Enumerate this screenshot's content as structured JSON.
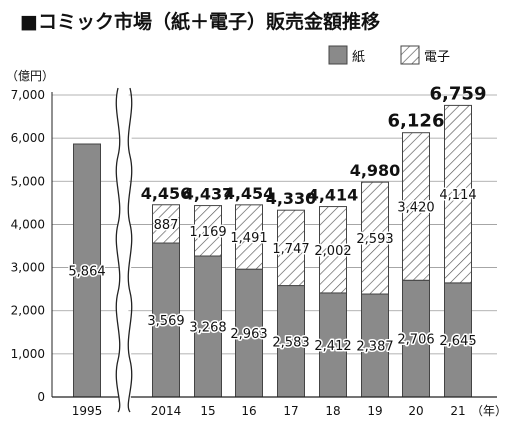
{
  "chart_data": {
    "type": "bar",
    "title": "■コミック市場（紙＋電子）販売金額推移",
    "ylabel": "（億円）",
    "xlabel": "（年）",
    "ylim": [
      0,
      7000
    ],
    "yticks": [
      "0",
      "1,000",
      "2,000",
      "3,000",
      "4,000",
      "5,000",
      "6,000",
      "7,000"
    ],
    "categories": [
      "1995",
      "2014",
      "15",
      "16",
      "17",
      "18",
      "19",
      "20",
      "21"
    ],
    "legend_position": "top-right",
    "stacked": true,
    "axis_break": "between 1995 and 2014",
    "series": [
      {
        "name": "紙",
        "fill": "#8a8a8a",
        "values": [
          5864,
          3569,
          3268,
          2963,
          2583,
          2412,
          2387,
          2706,
          2645
        ],
        "labels": [
          "5,864",
          "3,569",
          "3,268",
          "2,963",
          "2,583",
          "2,412",
          "2,387",
          "2,706",
          "2,645"
        ]
      },
      {
        "name": "電子",
        "fill": "hatched",
        "values": [
          0,
          887,
          1169,
          1491,
          1747,
          2002,
          2593,
          3420,
          4114
        ],
        "labels": [
          "",
          "887",
          "1,169",
          "1,491",
          "1,747",
          "2,002",
          "2,593",
          "3,420",
          "4,114"
        ]
      }
    ],
    "totals": [
      null,
      4456,
      4437,
      4454,
      4330,
      4414,
      4980,
      6126,
      6759
    ],
    "total_labels": [
      "",
      "4,456",
      "4,437",
      "4,454",
      "4,330",
      "4,414",
      "4,980",
      "6,126",
      "6,759"
    ]
  }
}
